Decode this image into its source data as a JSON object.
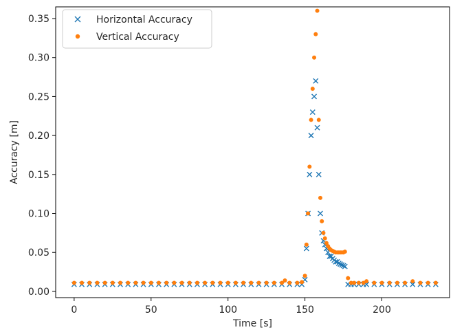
{
  "chart_data": {
    "type": "scatter",
    "title": "",
    "xlabel": "Time [s]",
    "ylabel": "Accuracy [m]",
    "xlim": [
      -12,
      244
    ],
    "ylim": [
      -0.008,
      0.365
    ],
    "xticks": [
      0,
      50,
      100,
      150,
      200
    ],
    "xtick_labels": [
      "0",
      "50",
      "100",
      "150",
      "200"
    ],
    "yticks": [
      0.0,
      0.05,
      0.1,
      0.15,
      0.2,
      0.25,
      0.3,
      0.35
    ],
    "ytick_labels": [
      "0.00",
      "0.05",
      "0.10",
      "0.15",
      "0.20",
      "0.25",
      "0.30",
      "0.35"
    ],
    "grid": false,
    "legend_position": "upper-left",
    "series": [
      {
        "name": "Horizontal Accuracy",
        "marker": "x",
        "color": "#1f77b4",
        "x": [
          0,
          5,
          10,
          15,
          20,
          25,
          30,
          35,
          40,
          45,
          50,
          55,
          60,
          65,
          70,
          75,
          80,
          85,
          90,
          95,
          100,
          105,
          110,
          115,
          120,
          125,
          130,
          135,
          140,
          145,
          148,
          150,
          151,
          152,
          153,
          154,
          155,
          156,
          157,
          158,
          159,
          160,
          161,
          162,
          163,
          164,
          165,
          166,
          167,
          168,
          169,
          170,
          171,
          172,
          173,
          174,
          175,
          176,
          178,
          180,
          182,
          185,
          188,
          190,
          195,
          200,
          205,
          210,
          215,
          220,
          225,
          230,
          235
        ],
        "y": [
          0.009,
          0.009,
          0.009,
          0.009,
          0.009,
          0.009,
          0.009,
          0.009,
          0.009,
          0.009,
          0.009,
          0.009,
          0.009,
          0.009,
          0.009,
          0.009,
          0.009,
          0.009,
          0.009,
          0.009,
          0.009,
          0.009,
          0.009,
          0.009,
          0.009,
          0.009,
          0.009,
          0.009,
          0.009,
          0.009,
          0.009,
          0.015,
          0.055,
          0.1,
          0.15,
          0.2,
          0.23,
          0.25,
          0.27,
          0.21,
          0.15,
          0.1,
          0.075,
          0.065,
          0.06,
          0.055,
          0.05,
          0.045,
          0.045,
          0.042,
          0.04,
          0.038,
          0.038,
          0.036,
          0.035,
          0.034,
          0.033,
          0.032,
          0.009,
          0.009,
          0.009,
          0.009,
          0.009,
          0.009,
          0.009,
          0.009,
          0.009,
          0.009,
          0.009,
          0.009,
          0.009,
          0.009,
          0.009
        ]
      },
      {
        "name": "Vertical Accuracy",
        "marker": "o",
        "color": "#ff7f0e",
        "x": [
          0,
          5,
          10,
          15,
          20,
          25,
          30,
          35,
          40,
          45,
          50,
          55,
          60,
          65,
          70,
          75,
          80,
          85,
          90,
          95,
          100,
          105,
          110,
          115,
          120,
          125,
          130,
          135,
          137,
          140,
          145,
          148,
          150,
          151,
          152,
          153,
          154,
          155,
          156,
          157,
          158,
          159,
          160,
          161,
          162,
          163,
          164,
          165,
          166,
          167,
          168,
          169,
          170,
          171,
          172,
          173,
          174,
          175,
          176,
          178,
          180,
          182,
          185,
          188,
          190,
          195,
          200,
          205,
          210,
          215,
          220,
          225,
          230,
          235
        ],
        "y": [
          0.011,
          0.011,
          0.011,
          0.011,
          0.011,
          0.011,
          0.011,
          0.011,
          0.011,
          0.011,
          0.011,
          0.011,
          0.011,
          0.011,
          0.011,
          0.011,
          0.011,
          0.011,
          0.011,
          0.011,
          0.011,
          0.011,
          0.011,
          0.011,
          0.011,
          0.011,
          0.011,
          0.011,
          0.014,
          0.011,
          0.011,
          0.012,
          0.02,
          0.06,
          0.1,
          0.16,
          0.22,
          0.26,
          0.3,
          0.33,
          0.36,
          0.22,
          0.12,
          0.09,
          0.075,
          0.068,
          0.062,
          0.058,
          0.055,
          0.053,
          0.052,
          0.051,
          0.05,
          0.05,
          0.05,
          0.05,
          0.05,
          0.05,
          0.051,
          0.017,
          0.011,
          0.011,
          0.011,
          0.011,
          0.013,
          0.011,
          0.011,
          0.011,
          0.011,
          0.011,
          0.013,
          0.011,
          0.011,
          0.011
        ]
      }
    ]
  }
}
